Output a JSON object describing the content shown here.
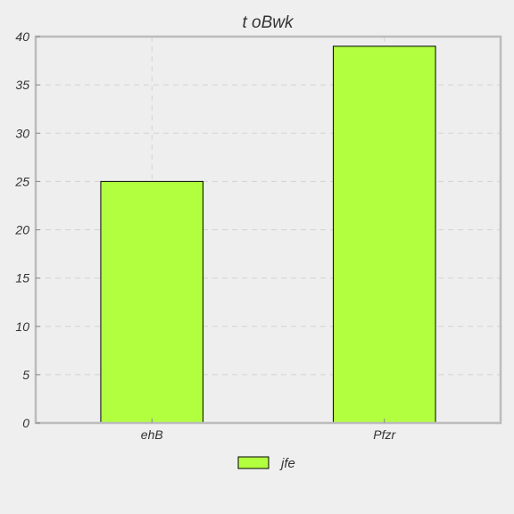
{
  "chart_data": {
    "type": "bar",
    "title": "t oBwk",
    "xlabel": "",
    "ylabel": "",
    "categories": [
      "ehB",
      "Pfzr"
    ],
    "series": [
      {
        "name": "jfe",
        "values": [
          25,
          39
        ]
      }
    ],
    "ylim": [
      0,
      40
    ],
    "yticks": [
      0,
      5,
      10,
      15,
      20,
      25,
      30,
      35,
      40
    ],
    "grid": true,
    "legend_position": "bottom-center",
    "colors": {
      "background": "#efefef",
      "plot_background": "#eeeeee",
      "bar_fill": "#b2ff40",
      "bar_edge": "#000000",
      "axes_border": "#bcbcbc",
      "grid": "#d3d3d3",
      "text": "#333333"
    }
  }
}
